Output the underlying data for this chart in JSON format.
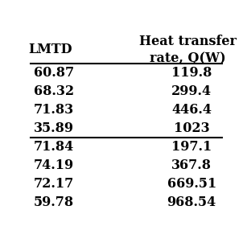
{
  "col_headers": [
    "LMTD",
    "Heat transfer\nrate, Q(W)"
  ],
  "group1": [
    [
      "60.87",
      "119.8"
    ],
    [
      "68.32",
      "299.4"
    ],
    [
      "71.83",
      "446.4"
    ],
    [
      "35.89",
      "1023"
    ]
  ],
  "group2": [
    [
      "71.84",
      "197.1"
    ],
    [
      "74.19",
      "367.8"
    ],
    [
      "72.17",
      "669.51"
    ],
    [
      "59.78",
      "968.54"
    ]
  ],
  "bg_color": "#ffffff",
  "text_color": "#000000",
  "header_fontsize": 11.5,
  "cell_fontsize": 11.5
}
